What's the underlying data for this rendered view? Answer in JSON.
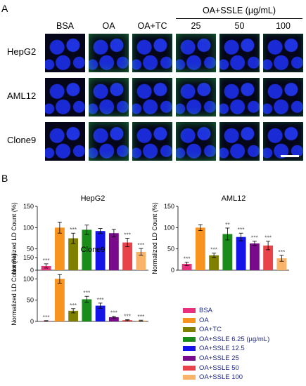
{
  "panel_a": {
    "letter": "A",
    "group_label": "OA+SSLE (µg/mL)",
    "columns": [
      "BSA",
      "OA",
      "OA+TC",
      "25",
      "50",
      "100"
    ],
    "rows": [
      "HepG2",
      "AML12",
      "Clone9"
    ]
  },
  "panel_b": {
    "letter": "B",
    "legend": [
      {
        "label": "BSA",
        "color": "#e8317c"
      },
      {
        "label": "OA",
        "color": "#f7931e"
      },
      {
        "label": "OA+TC",
        "color": "#808000"
      },
      {
        "label": "OA+SSLE 6.25 (µg/mL)",
        "color": "#1a8c1a"
      },
      {
        "label": "OA+SSLE 12.5",
        "color": "#1414e6"
      },
      {
        "label": "OA+SSLE 25",
        "color": "#7a0a8c"
      },
      {
        "label": "OA+SSLE 50",
        "color": "#e8434a"
      },
      {
        "label": "OA+SSLE 100",
        "color": "#f9b46a"
      }
    ]
  },
  "chart_data": [
    {
      "type": "bar",
      "title": "HepG2",
      "ylabel": "Normalized LD Count (%)",
      "ylim": [
        0,
        150
      ],
      "yticks": [
        0,
        50,
        100,
        150
      ],
      "categories": [
        "BSA",
        "OA",
        "OA+TC",
        "OA+SSLE 6.25",
        "OA+SSLE 12.5",
        "OA+SSLE 25",
        "OA+SSLE 50",
        "OA+SSLE 100"
      ],
      "values": [
        10,
        100,
        75,
        95,
        92,
        87,
        65,
        43
      ],
      "errors": [
        5,
        13,
        12,
        11,
        6,
        9,
        10,
        8
      ],
      "significance": [
        "***",
        "",
        "***",
        "",
        "",
        "",
        "***",
        "***"
      ]
    },
    {
      "type": "bar",
      "title": "AML12",
      "ylabel": "Normalized LD Count (%)",
      "ylim": [
        0,
        150
      ],
      "yticks": [
        0,
        50,
        100,
        150
      ],
      "categories": [
        "BSA",
        "OA",
        "OA+TC",
        "OA+SSLE 6.25",
        "OA+SSLE 12.5",
        "OA+SSLE 25",
        "OA+SSLE 50",
        "OA+SSLE 100"
      ],
      "values": [
        15,
        100,
        35,
        85,
        78,
        63,
        58,
        28
      ],
      "errors": [
        4,
        7,
        5,
        14,
        9,
        5,
        10,
        7
      ],
      "significance": [
        "***",
        "",
        "***",
        "**",
        "***",
        "***",
        "***",
        "***"
      ]
    },
    {
      "type": "bar",
      "title": "Clone9",
      "ylabel": "Normalized LD Count (%)",
      "ylim": [
        0,
        150
      ],
      "yticks": [
        0,
        50,
        100,
        150
      ],
      "categories": [
        "BSA",
        "OA",
        "OA+TC",
        "OA+SSLE 6.25",
        "OA+SSLE 12.5",
        "OA+SSLE 25",
        "OA+SSLE 50",
        "OA+SSLE 100"
      ],
      "values": [
        1,
        100,
        25,
        52,
        37,
        10,
        3,
        2
      ],
      "errors": [
        1,
        10,
        5,
        7,
        6,
        2,
        1,
        1
      ],
      "significance": [
        "***",
        "",
        "***",
        "***",
        "***",
        "***",
        "***",
        "***"
      ]
    }
  ]
}
